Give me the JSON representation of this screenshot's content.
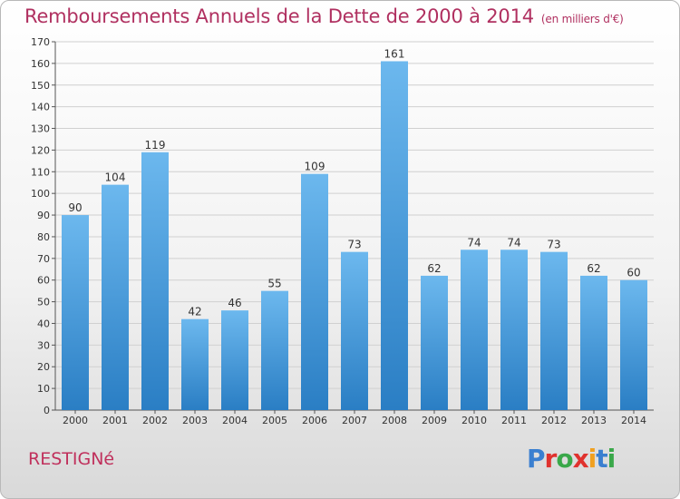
{
  "header": {
    "title": "Remboursements Annuels de la Dette de 2000 à 2014",
    "subtitle": "(en milliers d'€)"
  },
  "footer": {
    "commune": "RESTIGNé",
    "brand": [
      "P",
      "r",
      "o",
      "x",
      "i",
      "t",
      "i"
    ],
    "brand_colors": [
      "#3a7fd0",
      "#e0322e",
      "#3aa84a",
      "#e0322e",
      "#f0a020",
      "#3a7fd0",
      "#3aa84a"
    ]
  },
  "colors": {
    "bar_top": "#6cb8ee",
    "bar_bottom": "#2a7ec4",
    "grid": "#d0d0d0",
    "axis": "#555555"
  },
  "chart_data": {
    "type": "bar",
    "title": "Remboursements Annuels de la Dette de 2000 à 2014",
    "subtitle": "(en milliers d'€)",
    "xlabel": "",
    "ylabel": "",
    "categories": [
      "2000",
      "2001",
      "2002",
      "2003",
      "2004",
      "2005",
      "2006",
      "2007",
      "2008",
      "2009",
      "2010",
      "2011",
      "2012",
      "2013",
      "2014"
    ],
    "values": [
      90,
      104,
      119,
      42,
      46,
      55,
      109,
      73,
      161,
      62,
      74,
      74,
      73,
      62,
      60
    ],
    "ylim": [
      0,
      170
    ],
    "yticks": [
      0,
      10,
      20,
      30,
      40,
      50,
      60,
      70,
      80,
      90,
      100,
      110,
      120,
      130,
      140,
      150,
      160,
      170
    ],
    "grid": true,
    "legend": "none"
  }
}
